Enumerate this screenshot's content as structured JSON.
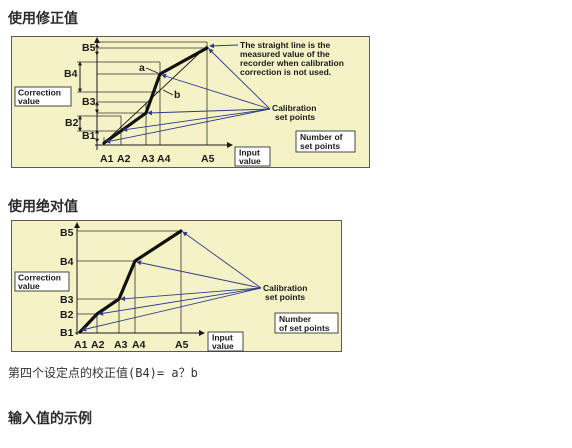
{
  "headings": {
    "correction_method": "使用修正值",
    "absolute_method": "使用绝对值",
    "input_example": "输入值的示例"
  },
  "formula": "第四个设定点的校正值(B4)= a？b",
  "colors": {
    "diagram_bg": "#f5f3c6",
    "pointer": "#2e3a8c",
    "ink": "#1a1a1a",
    "heading": "#2b2b2b"
  },
  "diagram_correction": {
    "y_labels": [
      "B1",
      "B2",
      "B3",
      "B4",
      "B5"
    ],
    "x_labels": [
      "A1",
      "A2",
      "A3",
      "A4",
      "A5"
    ],
    "point_a": "a",
    "point_b": "b",
    "note": [
      "The straight line is the",
      "measured value of the",
      "recorder when calibration",
      "correction is not used."
    ],
    "calibration_label": [
      "Calibration",
      "set points"
    ],
    "correction_box": [
      "Correction",
      "value"
    ],
    "input_box": [
      "Input",
      "value"
    ],
    "number_box": [
      "Number of",
      "set points"
    ]
  },
  "diagram_absolute": {
    "y_labels": [
      "B1",
      "B2",
      "B3",
      "B4",
      "B5"
    ],
    "x_labels": [
      "A1",
      "A2",
      "A3",
      "A4",
      "A5"
    ],
    "calibration_label": [
      "Calibration",
      "set points"
    ],
    "correction_box": [
      "Correction",
      "value"
    ],
    "input_box": [
      "Input",
      "value"
    ],
    "number_box": [
      "Number",
      "of set points"
    ]
  }
}
